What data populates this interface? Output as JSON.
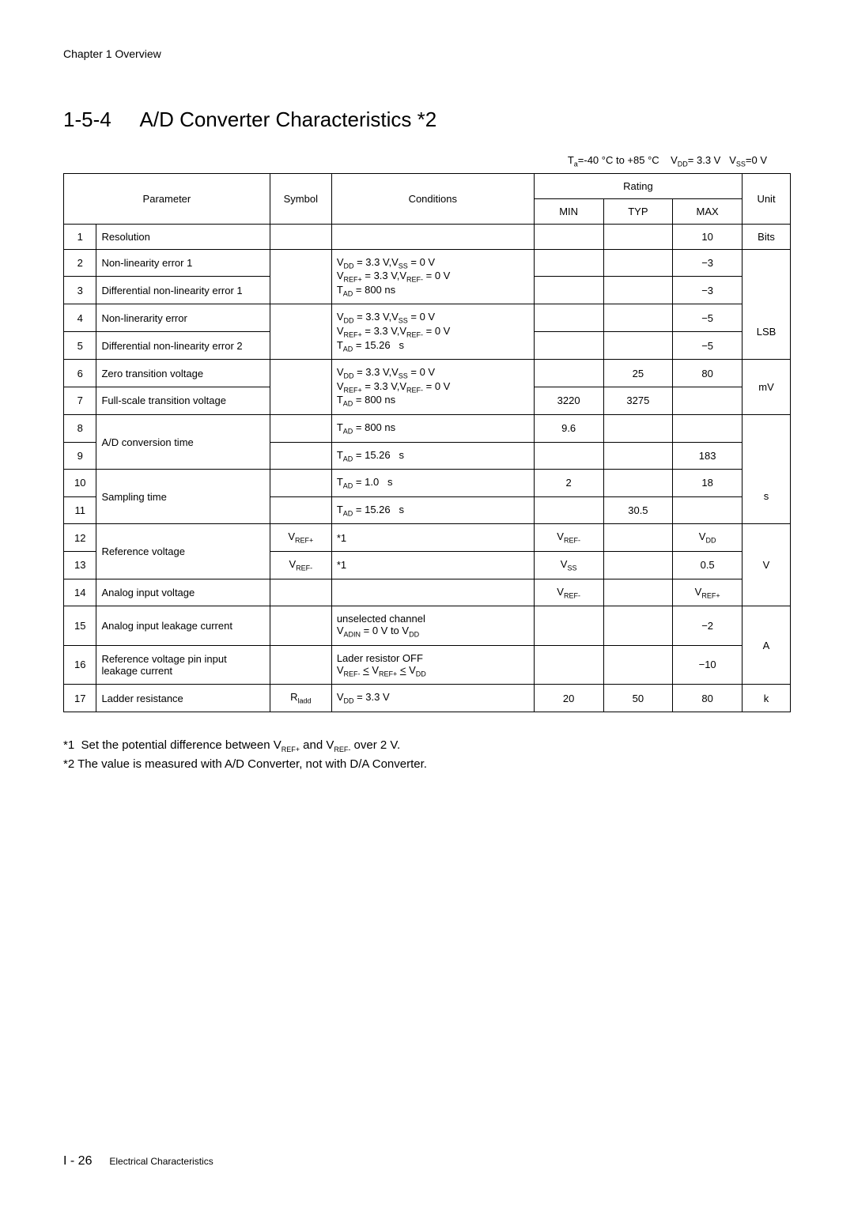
{
  "chapter_header": "Chapter 1   Overview",
  "section": {
    "number": "1-5-4",
    "title": "A/D Converter Characteristics  *2"
  },
  "conditions_line": "Tₐ=-40 °C to +85 °C    V_DD= 3.3 V   V_SS=0 V",
  "headers": {
    "parameter": "Parameter",
    "symbol": "Symbol",
    "conditions": "Conditions",
    "rating": "Rating",
    "min": "MIN",
    "typ": "TYP",
    "max": "MAX",
    "unit": "Unit"
  },
  "rows": {
    "r1": {
      "n": "1",
      "param": "Resolution",
      "min": "",
      "typ": "",
      "max": "10",
      "unit": "Bits"
    },
    "r2": {
      "n": "2",
      "param": "Non-linearity error 1",
      "max": "−3"
    },
    "r3": {
      "n": "3",
      "param": "Differential non-linearity error 1",
      "max": "−3"
    },
    "r4": {
      "n": "4",
      "param": "Non-linerarity error",
      "max": "−5"
    },
    "r5": {
      "n": "5",
      "param": "Differential non-linearity error 2",
      "max": "−5"
    },
    "r6": {
      "n": "6",
      "param": "Zero transition voltage",
      "typ": "25",
      "max": "80"
    },
    "r7": {
      "n": "7",
      "param": "Full-scale transition voltage",
      "min": "3220",
      "typ": "3275"
    },
    "r8": {
      "n": "8",
      "min": "9.6"
    },
    "r9": {
      "n": "9",
      "param_group": "A/D conversion time",
      "max": "183"
    },
    "r10": {
      "n": "10",
      "min": "2",
      "max": "18"
    },
    "r11": {
      "n": "11",
      "param_group": "Sampling time",
      "typ": "30.5"
    },
    "r12": {
      "n": "12",
      "sym": "V_REF+",
      "cond": "*1",
      "min": "V_REF-",
      "max": "V_DD"
    },
    "r13": {
      "n": "13",
      "param_group": "Reference voltage",
      "sym": "V_REF-",
      "cond": "*1",
      "min": "V_SS",
      "max": "0.5"
    },
    "r14": {
      "n": "14",
      "param": "Analog input voltage",
      "min": "V_REF-",
      "max": "V_REF+"
    },
    "r15": {
      "n": "15",
      "param": "Analog input leakage current",
      "max": "−2"
    },
    "r16": {
      "n": "16",
      "param": "Reference voltage pin input leakage current",
      "max": "−10"
    },
    "r17": {
      "n": "17",
      "param": "Ladder resistance",
      "sym": "R_ladd",
      "cond": "V_DD = 3.3 V",
      "min": "20",
      "typ": "50",
      "max": "80",
      "unit": "k"
    }
  },
  "cond_groups": {
    "g1_l1": "V_DD = 3.3 V,V_SS = 0 V",
    "g1_l2": "V_REF+ = 3.3 V,V_REF- = 0 V",
    "g1_l3": "T_AD = 800 ns",
    "g2_l1": "V_DD = 3.3 V,V_SS = 0 V",
    "g2_l2": "V_REF+ = 3.3 V,V_REF- = 0 V",
    "g2_l3": "T_AD = 15.26   s",
    "g3_l1": "V_DD = 3.3 V,V_SS = 0 V",
    "g3_l2": "V_REF+ = 3.3 V,V_REF- = 0 V",
    "g3_l3": "T_AD = 800 ns",
    "c8": "T_AD = 800 ns",
    "c9": "T_AD = 15.26   s",
    "c10": "T_AD = 1.0   s",
    "c11": "T_AD = 15.26   s",
    "c15_l1": "unselected channel",
    "c15_l2": "V_ADIN = 0 V to V_DD",
    "c16_l1": "Lader resistor OFF",
    "c16_l2": "V_REF- ≤ V_REF+ ≤ V_DD"
  },
  "units": {
    "lsb": "LSB",
    "mv": "mV",
    "s": "s",
    "v": "V",
    "a": "A"
  },
  "notes": {
    "n1": "*1  Set the potential difference between V_REF+ and V_REF- over 2 V.",
    "n2": "*2  The value is measured with A/D Converter, not with D/A Converter."
  },
  "footer": {
    "page": "I - 26",
    "label": "Electrical Characteristics"
  },
  "style": {
    "font_family": "Arial, Helvetica, sans-serif",
    "page_bg": "#ffffff",
    "text_color": "#000000",
    "border_color": "#000000",
    "title_fontsize": 26,
    "body_fontsize": 13,
    "notes_fontsize": 15
  }
}
